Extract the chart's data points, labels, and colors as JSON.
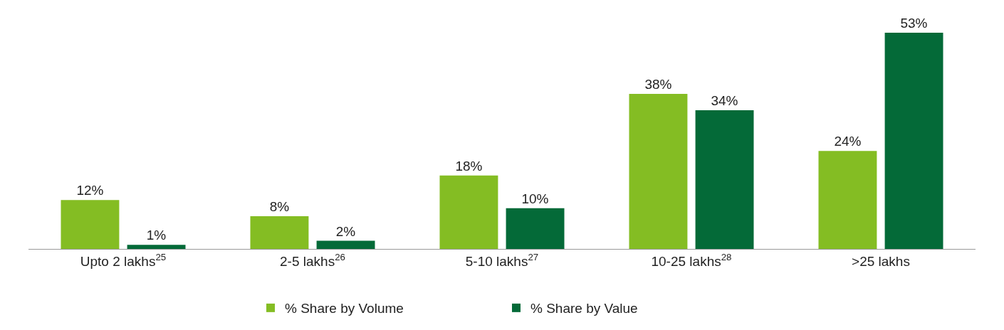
{
  "chart_data": {
    "type": "bar",
    "categories": [
      "Upto 2 lakhs$^{25}$",
      "2-5 lakhs$^{26}$",
      "5-10 lakhs$^{27}$",
      "10-25 lakhs$^{28}$",
      ">25 lakhs"
    ],
    "series": [
      {
        "name": "% Share by Volume",
        "color": "#84bd23",
        "values": [
          12,
          8,
          18,
          38,
          24
        ],
        "value_labels": [
          "12%",
          "8%",
          "18%",
          "38%",
          "24%"
        ]
      },
      {
        "name": "% Share by Value",
        "color": "#046a38",
        "values": [
          1,
          2,
          10,
          34,
          53
        ],
        "value_labels": [
          "1%",
          "2%",
          "10%",
          "34%",
          "53%"
        ]
      }
    ],
    "legend": "bottom"
  }
}
